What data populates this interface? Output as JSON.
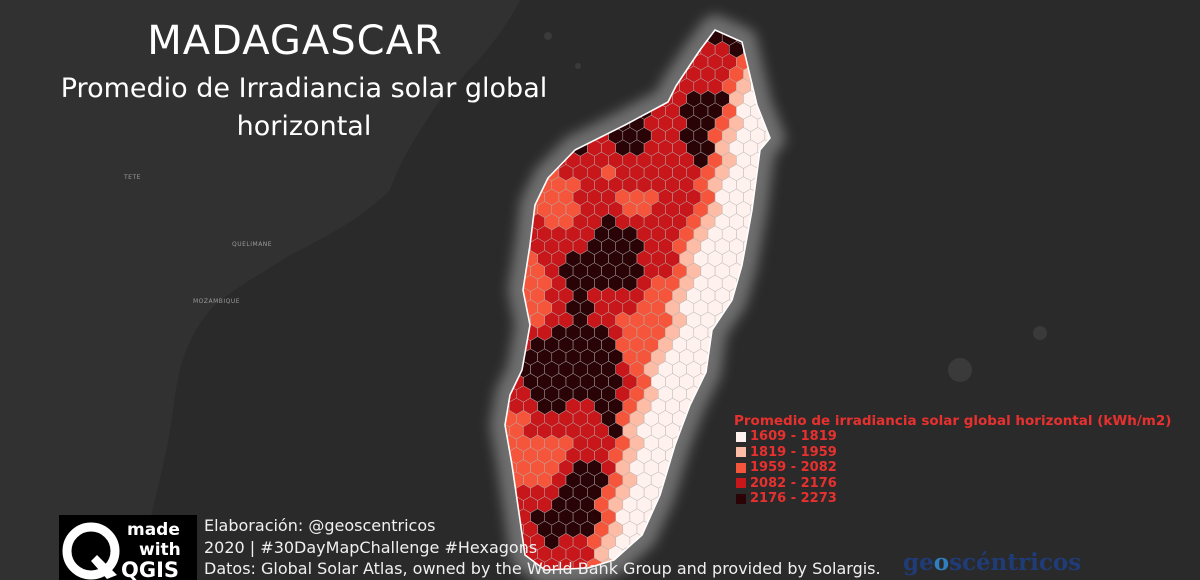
{
  "map": {
    "title": "MADAGASCAR",
    "subtitle_line1": "Promedio de Irradiancia solar global",
    "subtitle_line2": "horizontal",
    "basemap_labels": [
      "MOZAMBIQUE",
      "QUELIMANE",
      "TETE"
    ],
    "colors": {
      "background": "#2a2a2a",
      "land": "#313131",
      "halo": "#6b6b6b",
      "legend_text": "#e8312f"
    }
  },
  "legend": {
    "title": "Promedio de irradiancia solar global horizontal (kWh/m2)",
    "classes": [
      {
        "label": "1609 - 1819",
        "color": "#fff2ee"
      },
      {
        "label": "1819 - 1959",
        "color": "#fcbca6"
      },
      {
        "label": "1959 - 2082",
        "color": "#f5553a"
      },
      {
        "label": "2082 - 2176",
        "color": "#c8171a"
      },
      {
        "label": "2176 - 2273",
        "color": "#2a0306"
      }
    ]
  },
  "credits": {
    "line1": "Elaboración: @geoscentricos",
    "line2": "2020 |  #30DayMapChallenge #Hexagons",
    "line3": "Datos: Global Solar Atlas, owned by the World Bank Group and provided by Solargis."
  },
  "badge": {
    "made": "made",
    "with": "with",
    "product": "QGIS"
  },
  "brand": {
    "prefix": "ge",
    "o": "o",
    "suffix": "scéntricos"
  }
}
